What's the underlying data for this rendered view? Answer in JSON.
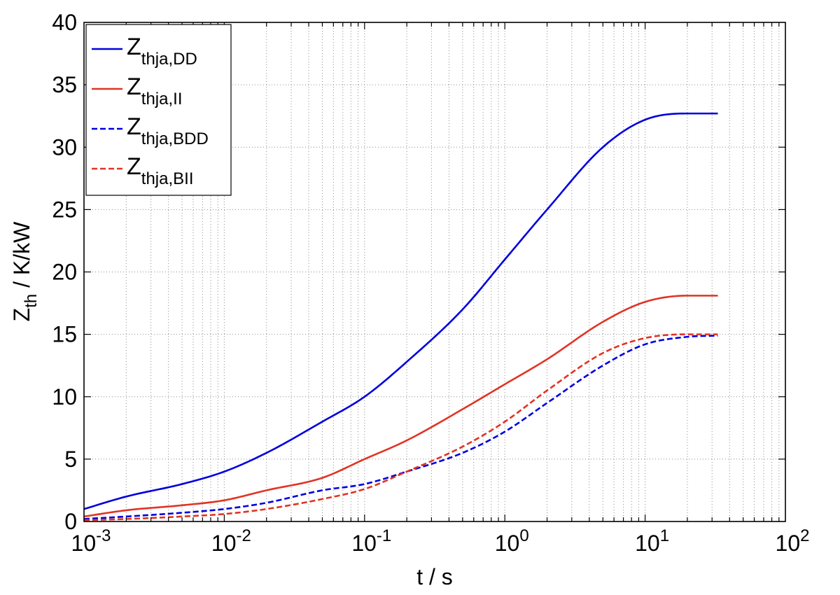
{
  "chart_data": {
    "type": "line",
    "title": "",
    "xlabel": "t / s",
    "ylabel": {
      "main": "Z",
      "sub": "th",
      "rest": " / K/kW"
    },
    "xscale": "log",
    "xlim": [
      0.001,
      100
    ],
    "ylim": [
      0,
      40
    ],
    "x_ticks": [
      {
        "base": "10",
        "exp": "-3"
      },
      {
        "base": "10",
        "exp": "-2"
      },
      {
        "base": "10",
        "exp": "-1"
      },
      {
        "base": "10",
        "exp": "0"
      },
      {
        "base": "10",
        "exp": "1"
      },
      {
        "base": "10",
        "exp": "2"
      }
    ],
    "y_ticks": [
      "0",
      "5",
      "10",
      "15",
      "20",
      "25",
      "30",
      "35",
      "40"
    ],
    "grid": true,
    "legend_position": "top-left",
    "x": [
      0.001,
      0.002,
      0.005,
      0.01,
      0.02,
      0.05,
      0.1,
      0.2,
      0.5,
      1,
      2,
      5,
      10,
      20,
      33
    ],
    "series": [
      {
        "name_main": "Z",
        "name_sub": "thja,DD",
        "color": "#0000dd",
        "style": "solid",
        "values": [
          1.0,
          2.0,
          3.0,
          4.0,
          5.5,
          8.0,
          10.0,
          12.8,
          17.0,
          21.0,
          25.0,
          30.0,
          32.2,
          32.7,
          32.7
        ]
      },
      {
        "name_main": "Z",
        "name_sub": "thja,II",
        "color": "#e03424",
        "style": "solid",
        "values": [
          0.4,
          0.9,
          1.3,
          1.7,
          2.5,
          3.5,
          5.0,
          6.5,
          9.0,
          11.0,
          13.0,
          16.0,
          17.6,
          18.1,
          18.1
        ]
      },
      {
        "name_main": "Z",
        "name_sub": "thja,BDD",
        "color": "#0000dd",
        "style": "dashed",
        "values": [
          0.2,
          0.4,
          0.7,
          1.0,
          1.5,
          2.5,
          3.0,
          4.0,
          5.5,
          7.2,
          9.5,
          12.5,
          14.2,
          14.8,
          14.9
        ]
      },
      {
        "name_main": "Z",
        "name_sub": "thja,BII",
        "color": "#e03424",
        "style": "dashed",
        "values": [
          0.1,
          0.2,
          0.4,
          0.6,
          1.0,
          1.8,
          2.6,
          4.0,
          6.0,
          8.0,
          10.5,
          13.5,
          14.7,
          15.0,
          15.0
        ]
      }
    ]
  }
}
